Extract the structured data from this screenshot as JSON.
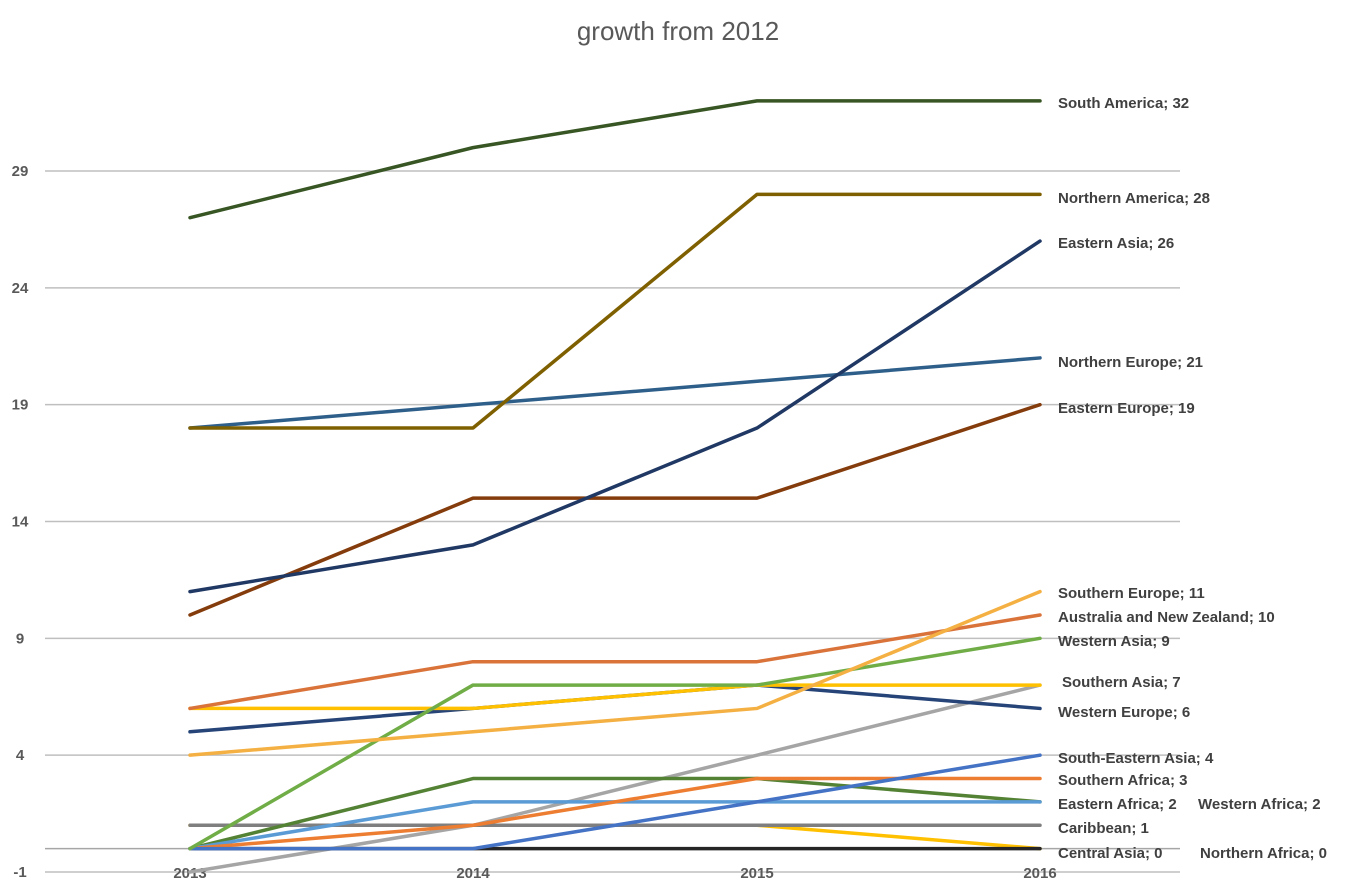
{
  "chart_data": {
    "type": "line",
    "title": "growth from 2012",
    "xlabel": "",
    "ylabel": "",
    "x": [
      "2013",
      "2014",
      "2015",
      "2016"
    ],
    "ylim": [
      -1,
      33
    ],
    "yticks": [
      "-1",
      "4",
      "9",
      "14",
      "19",
      "24",
      "29"
    ],
    "grid": true,
    "legend": "inline-end-labels",
    "series": [
      {
        "name": "South America",
        "end_label": "South America; 32",
        "color": "#375623",
        "values": [
          27,
          30,
          32,
          32
        ]
      },
      {
        "name": "Northern America",
        "end_label": "Northern America; 28",
        "color": "#7F6000",
        "values": [
          18,
          18,
          28,
          28
        ]
      },
      {
        "name": "Eastern Asia",
        "end_label": "Eastern Asia; 26",
        "color": "#203864",
        "values": [
          11,
          13,
          18,
          26
        ]
      },
      {
        "name": "Northern Europe",
        "end_label": "Northern Europe; 21",
        "color": "#2E5F8A",
        "values": [
          18,
          19,
          20,
          21
        ]
      },
      {
        "name": "Eastern Europe",
        "end_label": "Eastern Europe; 19",
        "color": "#843C0C",
        "values": [
          10,
          15,
          15,
          19
        ]
      },
      {
        "name": "Southern Europe",
        "end_label": "Southern Europe; 11",
        "color": "#F4B042",
        "values": [
          4,
          5,
          6,
          11
        ]
      },
      {
        "name": "Australia and New Zealand",
        "end_label": "Australia and New Zealand; 10",
        "color": "#D9733A",
        "values": [
          6,
          8,
          8,
          10
        ]
      },
      {
        "name": "Western Asia",
        "end_label": "Western Asia; 9",
        "color": "#70AD47",
        "values": [
          0,
          7,
          7,
          9
        ]
      },
      {
        "name": "Southern Asia",
        "end_label": "Southern Asia; 7",
        "color": "#FFC000",
        "values": [
          6,
          6,
          7,
          7
        ]
      },
      {
        "name": "Western Europe",
        "end_label": "Western Europe; 6",
        "color": "#264478",
        "values": [
          5,
          6,
          7,
          6
        ]
      },
      {
        "name": "South-Eastern Asia",
        "end_label": "South-Eastern Asia; 4",
        "color": "#4472C4",
        "values": [
          0,
          0,
          2,
          4
        ]
      },
      {
        "name": "Southern Africa",
        "end_label": "Southern Africa; 3",
        "color": "#ED7D31",
        "values": [
          0,
          1,
          3,
          3
        ]
      },
      {
        "name": "Eastern Africa",
        "end_label": "Eastern Africa; 2",
        "color": "#5B9BD5",
        "values": [
          0,
          2,
          2,
          2
        ]
      },
      {
        "name": "Western Africa",
        "end_label": "Western Africa; 2",
        "color": "#548235",
        "values": [
          0,
          3,
          3,
          2
        ]
      },
      {
        "name": "Caribbean",
        "end_label": "Caribbean; 1",
        "color": "#7F7F7F",
        "values": [
          1,
          1,
          1,
          1
        ]
      },
      {
        "name": "Central Asia",
        "end_label": "Central Asia; 0",
        "color": "#262626",
        "values": [
          0,
          0,
          0,
          0
        ]
      },
      {
        "name": "Northern Africa",
        "end_label": "Northern Africa; 0",
        "color": "#FFC000",
        "values": [
          1,
          1,
          1,
          0
        ]
      },
      {
        "name": "",
        "end_label": "",
        "color": "#A5A5A5",
        "values": [
          -1,
          1,
          4,
          7
        ]
      }
    ]
  }
}
